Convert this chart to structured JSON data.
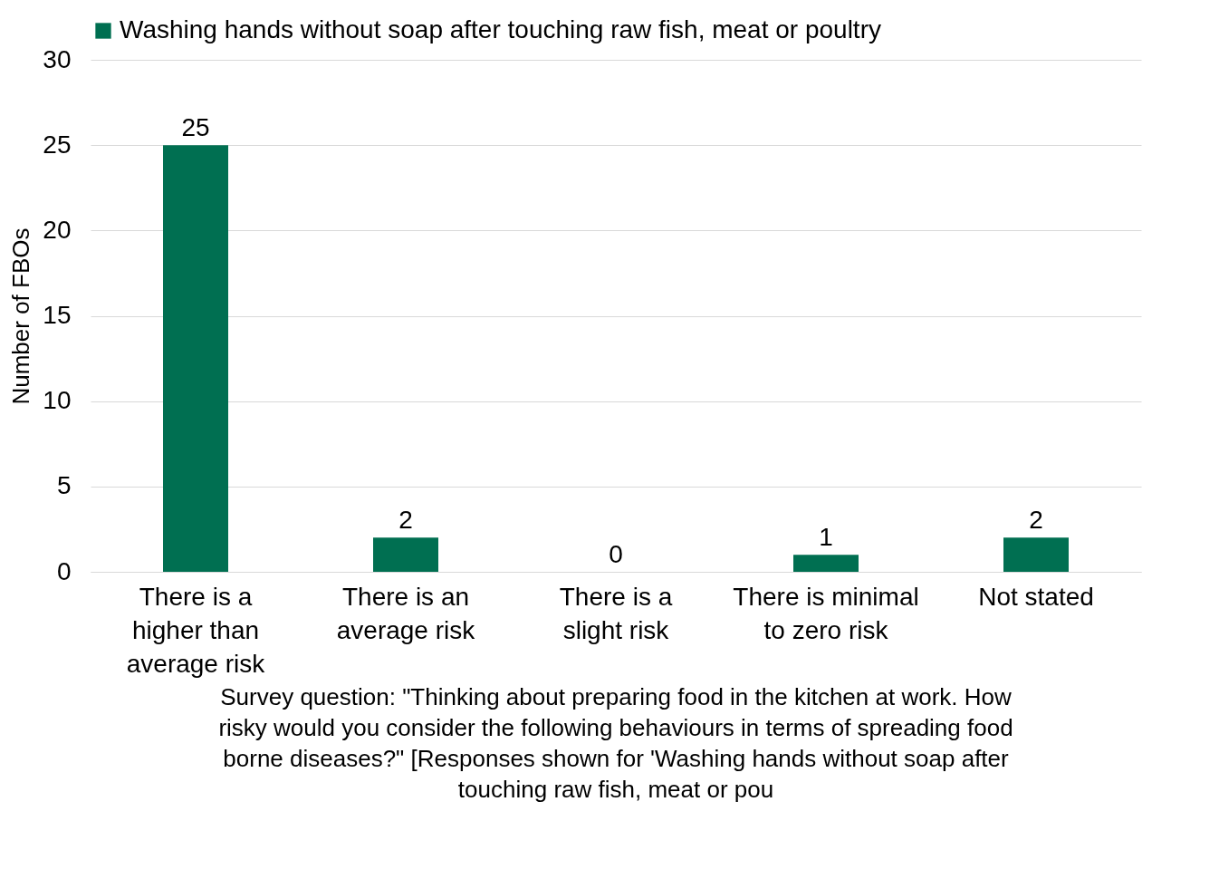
{
  "chart_data": {
    "type": "bar",
    "ylabel": "Number of FBOs",
    "categories": [
      "There is a higher than average risk",
      "There is an average risk",
      "There is a slight risk",
      "There is minimal to zero risk",
      "Not stated"
    ],
    "series": [
      {
        "name": "Washing hands without soap after touching raw fish, meat or poultry",
        "color": "#006f51",
        "values": [
          25,
          2,
          0,
          1,
          2
        ]
      }
    ],
    "ylim": [
      0,
      30
    ],
    "yticks": [
      0,
      5,
      10,
      15,
      20,
      25,
      30
    ],
    "grid": "y",
    "legend": "top",
    "data_labels": true,
    "annotations": [
      "Survey question: \"Thinking about preparing food in the kitchen at work. How risky would you consider the following behaviours in terms of spreading food borne diseases?\" [Responses shown for 'Washing hands without soap after touching raw fish, meat or pou"
    ]
  }
}
